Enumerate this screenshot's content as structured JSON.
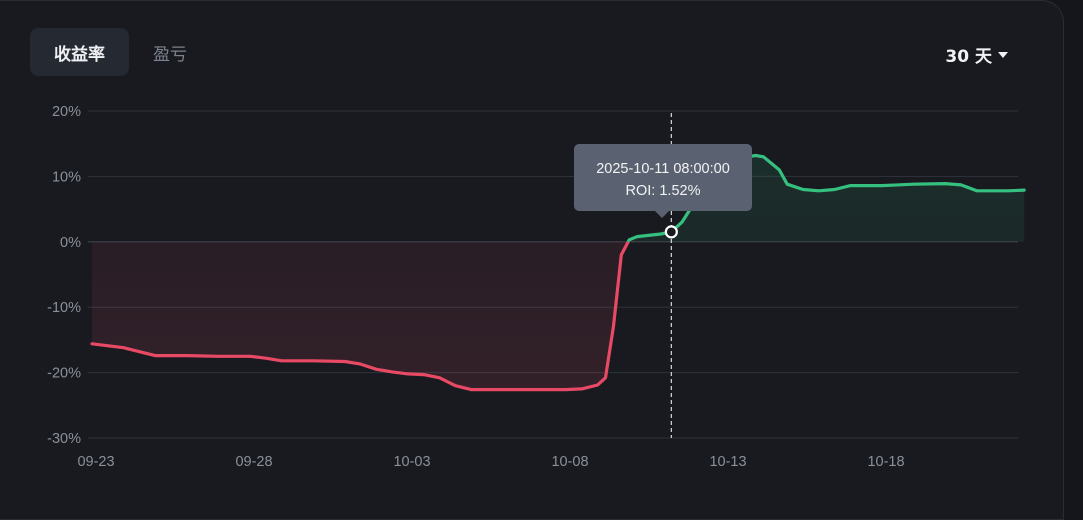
{
  "tabs": [
    {
      "label": "收益率",
      "active": true
    },
    {
      "label": "盈亏",
      "active": false
    }
  ],
  "range": {
    "label": "30 天"
  },
  "colors": {
    "positive": "#35c07f",
    "negative": "#e84a65",
    "grid": "#2f333b",
    "axis_text": "#8a909a",
    "tooltip_bg": "#5a6170"
  },
  "tooltip": {
    "datetime": "2025-10-11 08:00:00",
    "roi_text": "ROI: 1.52%"
  },
  "chart_data": {
    "type": "area",
    "title": "",
    "xlabel": "",
    "ylabel": "",
    "ylim": [
      -30,
      20
    ],
    "y_ticks": [
      20,
      10,
      0,
      -10,
      -20,
      -30
    ],
    "y_tick_labels": [
      "20%",
      "10%",
      "0%",
      "-10%",
      "-20%",
      "-30%"
    ],
    "x_tick_labels": [
      "09-23",
      "09-28",
      "10-03",
      "10-08",
      "10-13",
      "10-18"
    ],
    "x_start": "2025-09-23",
    "grid": true,
    "highlight": {
      "x": "2025-10-11 08:00",
      "y": 1.52
    },
    "series": [
      {
        "points": [
          [
            "2025-09-23 00:00",
            -15.6
          ],
          [
            "2025-09-24 00:00",
            -16.2
          ],
          [
            "2025-09-24 12:00",
            -16.8
          ],
          [
            "2025-09-25 00:00",
            -17.4
          ],
          [
            "2025-09-26 00:00",
            -17.4
          ],
          [
            "2025-09-27 00:00",
            -17.5
          ],
          [
            "2025-09-28 00:00",
            -17.5
          ],
          [
            "2025-09-28 12:00",
            -17.8
          ],
          [
            "2025-09-29 00:00",
            -18.2
          ],
          [
            "2025-09-30 00:00",
            -18.2
          ],
          [
            "2025-10-01 00:00",
            -18.3
          ],
          [
            "2025-10-01 12:00",
            -18.7
          ],
          [
            "2025-10-02 00:00",
            -19.5
          ],
          [
            "2025-10-02 12:00",
            -19.9
          ],
          [
            "2025-10-03 00:00",
            -20.2
          ],
          [
            "2025-10-03 12:00",
            -20.3
          ],
          [
            "2025-10-04 00:00",
            -20.8
          ],
          [
            "2025-10-04 12:00",
            -22.0
          ],
          [
            "2025-10-05 00:00",
            -22.6
          ],
          [
            "2025-10-06 00:00",
            -22.6
          ],
          [
            "2025-10-07 00:00",
            -22.6
          ],
          [
            "2025-10-08 00:00",
            -22.6
          ],
          [
            "2025-10-08 12:00",
            -22.5
          ],
          [
            "2025-10-09 00:00",
            -21.9
          ],
          [
            "2025-10-09 06:00",
            -20.8
          ],
          [
            "2025-10-09 12:00",
            -13.0
          ],
          [
            "2025-10-09 18:00",
            -2.0
          ],
          [
            "2025-10-10 00:00",
            0.3
          ],
          [
            "2025-10-10 06:00",
            0.8
          ],
          [
            "2025-10-11 00:00",
            1.2
          ],
          [
            "2025-10-11 08:00",
            1.52
          ],
          [
            "2025-10-11 16:00",
            3.0
          ],
          [
            "2025-10-12 00:00",
            5.5
          ],
          [
            "2025-10-12 12:00",
            9.0
          ],
          [
            "2025-10-13 00:00",
            11.5
          ],
          [
            "2025-10-13 12:00",
            12.8
          ],
          [
            "2025-10-14 00:00",
            13.2
          ],
          [
            "2025-10-14 06:00",
            13.0
          ],
          [
            "2025-10-14 18:00",
            11.0
          ],
          [
            "2025-10-15 00:00",
            8.8
          ],
          [
            "2025-10-15 12:00",
            8.0
          ],
          [
            "2025-10-16 00:00",
            7.8
          ],
          [
            "2025-10-16 12:00",
            8.0
          ],
          [
            "2025-10-17 00:00",
            8.6
          ],
          [
            "2025-10-18 00:00",
            8.6
          ],
          [
            "2025-10-19 00:00",
            8.8
          ],
          [
            "2025-10-20 00:00",
            8.9
          ],
          [
            "2025-10-20 12:00",
            8.7
          ],
          [
            "2025-10-21 00:00",
            7.8
          ],
          [
            "2025-10-22 00:00",
            7.8
          ],
          [
            "2025-10-22 12:00",
            7.9
          ]
        ]
      }
    ]
  }
}
